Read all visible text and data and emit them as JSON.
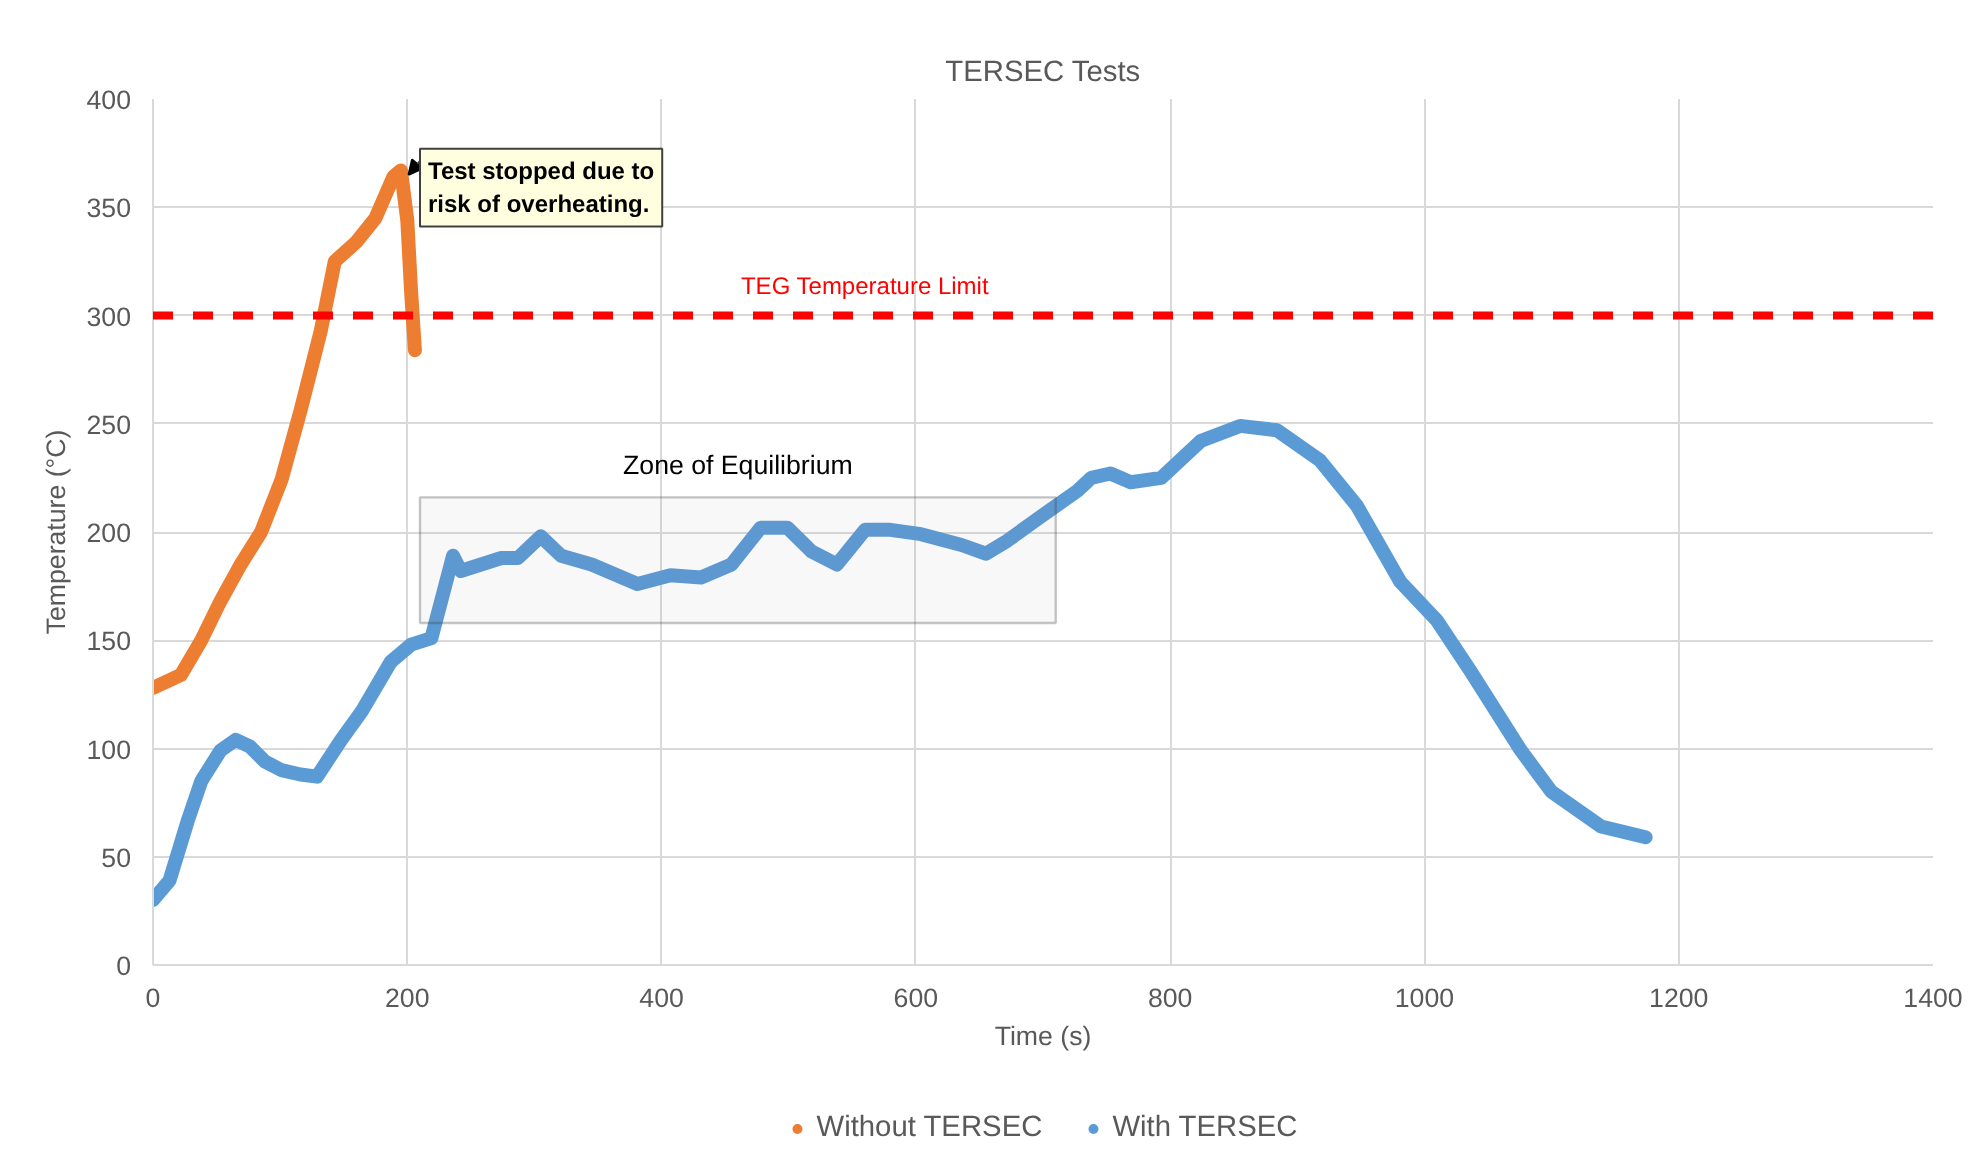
{
  "chart_data": {
    "type": "line",
    "title": "TERSEC Tests",
    "xlabel": "Time (s)",
    "ylabel": "Temperature (°C)",
    "xlim": [
      0,
      1400
    ],
    "xticks": [
      0,
      200,
      400,
      600,
      800,
      1000,
      1200,
      1400
    ],
    "ylim": [
      0,
      400
    ],
    "yticks": [
      0,
      50,
      100,
      150,
      200,
      250,
      300,
      350,
      400
    ],
    "grid": true,
    "legend": "bottom",
    "marker": "none",
    "line_style": "solid",
    "series": [
      {
        "name": "Without TERSEC",
        "color": "#ed7d31",
        "x": [
          0,
          22,
          38,
          53,
          69,
          85,
          101,
          116,
          132,
          143,
          160,
          175,
          189,
          195,
          200,
          203,
          206
        ],
        "values": [
          128,
          134,
          150,
          168,
          185,
          200,
          224,
          256,
          293,
          325,
          334,
          345,
          364,
          367,
          344,
          311,
          284
        ]
      },
      {
        "name": "With TERSEC",
        "color": "#5b9bd5",
        "x": [
          0,
          13,
          27,
          38,
          53,
          65,
          76,
          88,
          101,
          116,
          129,
          148,
          164,
          187,
          203,
          219,
          236,
          242,
          258,
          274,
          287,
          305,
          321,
          345,
          381,
          407,
          431,
          455,
          478,
          499,
          518,
          538,
          560,
          580,
          604,
          636,
          655,
          672,
          698,
          727,
          738,
          753,
          769,
          793,
          824,
          855,
          884,
          918,
          947,
          981,
          1010,
          1036,
          1076,
          1100,
          1139,
          1174
        ],
        "values": [
          30,
          39,
          66,
          85,
          99,
          104,
          101,
          94,
          90,
          88,
          87,
          104,
          117,
          140,
          148,
          151,
          189,
          182,
          185,
          188,
          188,
          198,
          189,
          185,
          176,
          180,
          179,
          185,
          202,
          202,
          191,
          185,
          201,
          201,
          199,
          194,
          190,
          196,
          207,
          219,
          225,
          227,
          223,
          225,
          242,
          249,
          247,
          233,
          212,
          177,
          159,
          136,
          99,
          80,
          64,
          59
        ]
      }
    ],
    "ref_lines": [
      {
        "axis": "y",
        "value": 300,
        "label": "TEG Temperature Limit",
        "color": "#ff0000",
        "line_style": "dashed"
      }
    ],
    "bands": [
      {
        "axis": "x",
        "from": 210,
        "to": 710,
        "label": "Zone of Equilibrium"
      }
    ],
    "annotations": [
      {
        "text": "Test stopped due to\nrisk of overheating.",
        "x": 195,
        "y": 367
      }
    ]
  }
}
